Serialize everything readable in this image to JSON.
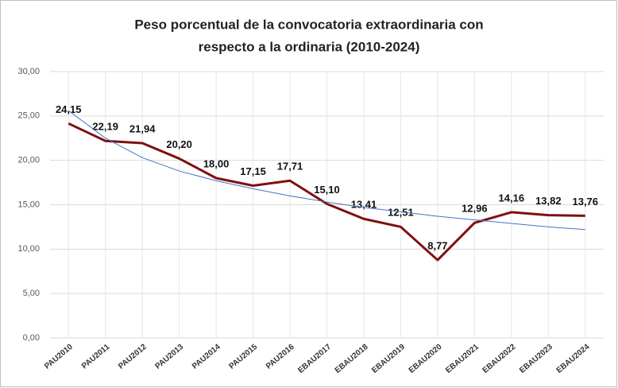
{
  "chart_data": {
    "type": "line",
    "title_lines": [
      "Peso porcentual de la convocatoria extraordinaria con",
      "respecto a la ordinaria (2010-2024)"
    ],
    "categories": [
      "PAU2010",
      "PAU2011",
      "PAU2012",
      "PAU2013",
      "PAU2014",
      "PAU2015",
      "PAU2016",
      "EBAU2017",
      "EBAU2018",
      "EBAU2019",
      "EBAU2020",
      "EBAU2021",
      "EBAU2022",
      "EBAU2023",
      "EBAU2024"
    ],
    "series": [
      {
        "color": "#7f1010",
        "values": [
          24.15,
          22.19,
          21.94,
          20.2,
          18.0,
          17.15,
          17.71,
          15.1,
          13.41,
          12.51,
          8.77,
          12.96,
          14.16,
          13.82,
          13.76
        ],
        "value_labels": [
          "24,15",
          "22,19",
          "21,94",
          "20,20",
          "18,00",
          "17,15",
          "17,71",
          "15,10",
          "13,41",
          "12,51",
          "8,77",
          "12,96",
          "14,16",
          "13,82",
          "13,76"
        ]
      }
    ],
    "trend": {
      "color": "#4472c4",
      "values": [
        25.6,
        22.5,
        20.3,
        18.8,
        17.7,
        16.8,
        16.0,
        15.3,
        14.7,
        14.2,
        13.7,
        13.3,
        12.9,
        12.5,
        12.2
      ]
    },
    "ylim": [
      0,
      30
    ],
    "yticks": [
      {
        "value": 0,
        "label": "0,00"
      },
      {
        "value": 5,
        "label": "5,00"
      },
      {
        "value": 10,
        "label": "10,00"
      },
      {
        "value": 15,
        "label": "15,00"
      },
      {
        "value": 20,
        "label": "20,00"
      },
      {
        "value": 25,
        "label": "25,00"
      },
      {
        "value": 30,
        "label": "30,00"
      }
    ],
    "grid": true
  }
}
